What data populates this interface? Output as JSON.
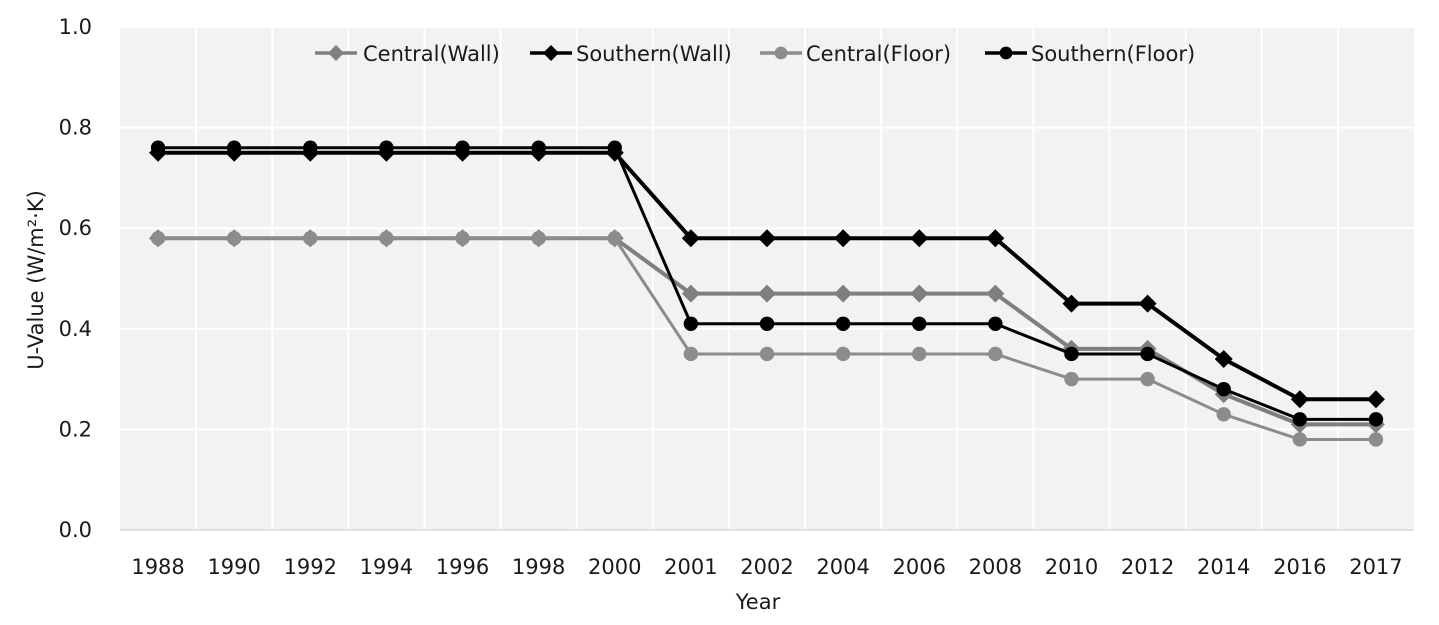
{
  "chart_data": {
    "type": "line",
    "title": "",
    "xlabel": "Year",
    "ylabel": "U-Value  (W/m²·K)",
    "categories": [
      "1988",
      "1990",
      "1992",
      "1994",
      "1996",
      "1998",
      "2000",
      "2001",
      "2002",
      "2004",
      "2006",
      "2008",
      "2010",
      "2012",
      "2014",
      "2016",
      "2017"
    ],
    "y_ticks": [
      "0.0",
      "0.2",
      "0.4",
      "0.6",
      "0.8",
      "1.0"
    ],
    "ylim": [
      0,
      1.0
    ],
    "grid": true,
    "legend_position": "top",
    "series": [
      {
        "name": "Central(Wall)",
        "marker": "diamond",
        "color": "#7f7f7f",
        "values": [
          0.58,
          0.58,
          0.58,
          0.58,
          0.58,
          0.58,
          0.58,
          0.47,
          0.47,
          0.47,
          0.47,
          0.47,
          0.36,
          0.36,
          0.27,
          0.21,
          0.21
        ]
      },
      {
        "name": "Southern(Wall)",
        "marker": "diamond",
        "color": "#000000",
        "values": [
          0.75,
          0.75,
          0.75,
          0.75,
          0.75,
          0.75,
          0.75,
          0.58,
          0.58,
          0.58,
          0.58,
          0.58,
          0.45,
          0.45,
          0.34,
          0.26,
          0.26
        ]
      },
      {
        "name": "Central(Floor)",
        "marker": "circle",
        "color": "#8c8c8c",
        "values": [
          0.58,
          0.58,
          0.58,
          0.58,
          0.58,
          0.58,
          0.58,
          0.35,
          0.35,
          0.35,
          0.35,
          0.35,
          0.3,
          0.3,
          0.23,
          0.18,
          0.18
        ]
      },
      {
        "name": "Southern(Floor)",
        "marker": "circle",
        "color": "#000000",
        "values": [
          0.76,
          0.76,
          0.76,
          0.76,
          0.76,
          0.76,
          0.76,
          0.41,
          0.41,
          0.41,
          0.41,
          0.41,
          0.35,
          0.35,
          0.28,
          0.22,
          0.22
        ]
      }
    ],
    "plot_background": "#f2f2f2",
    "gridline_color": "#ffffff"
  }
}
